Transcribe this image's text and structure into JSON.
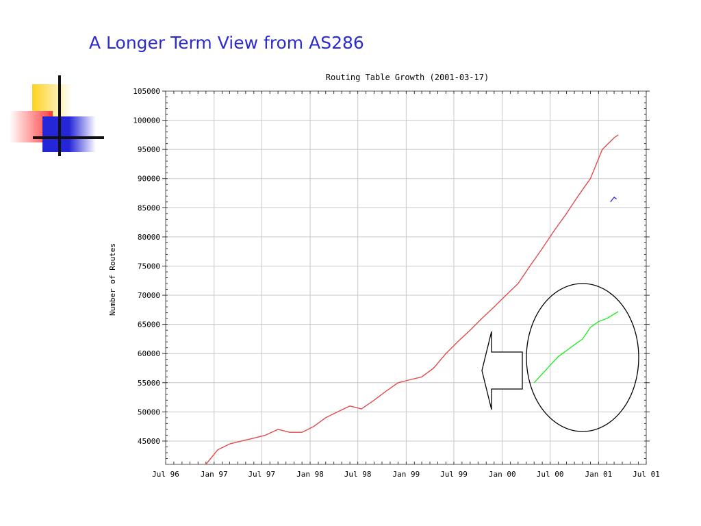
{
  "slide": {
    "title": "A Longer Term View from AS286"
  },
  "colors": {
    "title": "#2b2bd0",
    "logo_yellow": "#ffd21f",
    "logo_red": "#ff3b3b",
    "logo_blue": "#2626d9",
    "series_main": "#e24b4b",
    "series_highlight": "#22ee22",
    "series_small": "#3333dd",
    "grid": "#c8c8c8"
  },
  "chart_data": {
    "type": "line",
    "title": "Routing Table Growth (2001-03-17)",
    "xlabel": "",
    "ylabel": "Number of Routes",
    "ylim": [
      41000,
      105000
    ],
    "xlim": [
      "1996-07",
      "2001-07"
    ],
    "grid": true,
    "x_ticks": [
      "Jul 96",
      "Jan 97",
      "Jul 97",
      "Jan 98",
      "Jul 98",
      "Jan 99",
      "Jul 99",
      "Jan 00",
      "Jul 00",
      "Jan 01",
      "Jul 01"
    ],
    "y_ticks": [
      45000,
      50000,
      55000,
      60000,
      65000,
      70000,
      75000,
      80000,
      85000,
      90000,
      95000,
      100000,
      105000
    ],
    "series": [
      {
        "color": "#e24b4b",
        "x": [
          "1996-12-01",
          "1997-01-15",
          "1997-03-01",
          "1997-04-15",
          "1997-06-01",
          "1997-07-15",
          "1997-09-01",
          "1997-10-15",
          "1997-12-01",
          "1998-01-15",
          "1998-03-01",
          "1998-04-15",
          "1998-06-01",
          "1998-07-15",
          "1998-09-01",
          "1998-10-15",
          "1998-12-01",
          "1999-01-15",
          "1999-03-01",
          "1999-04-15",
          "1999-06-01",
          "1999-07-15",
          "1999-09-01",
          "1999-10-15",
          "1999-12-01",
          "2000-01-15",
          "2000-03-01",
          "2000-04-15",
          "2000-06-01",
          "2000-07-15",
          "2000-09-01",
          "2000-10-15",
          "2000-12-01",
          "2001-01-15",
          "2001-03-01",
          "2001-03-17"
        ],
        "y": [
          41000,
          43500,
          44500,
          45000,
          45500,
          46000,
          47000,
          46500,
          46500,
          47500,
          49000,
          50000,
          51000,
          50500,
          52000,
          53500,
          55000,
          55500,
          56000,
          57500,
          60000,
          62000,
          64000,
          66000,
          68000,
          70000,
          72000,
          75000,
          78000,
          81000,
          84000,
          87000,
          90000,
          95000,
          97000,
          97500
        ]
      },
      {
        "color": "#22ee22",
        "x": [
          "2000-05-01",
          "2000-06-01",
          "2000-07-01",
          "2000-08-01",
          "2000-09-01",
          "2000-10-01",
          "2000-11-01",
          "2000-12-01",
          "2001-01-01",
          "2001-02-01",
          "2001-03-17"
        ],
        "y": [
          55000,
          56500,
          58000,
          59500,
          60500,
          61500,
          62500,
          64500,
          65500,
          66000,
          67200
        ]
      },
      {
        "color": "#3333dd",
        "x": [
          "2001-02-15",
          "2001-03-01",
          "2001-03-10"
        ],
        "y": [
          86000,
          86800,
          86500
        ]
      }
    ],
    "annotations": [
      "arrow pointing left",
      "ellipse around green series"
    ]
  }
}
